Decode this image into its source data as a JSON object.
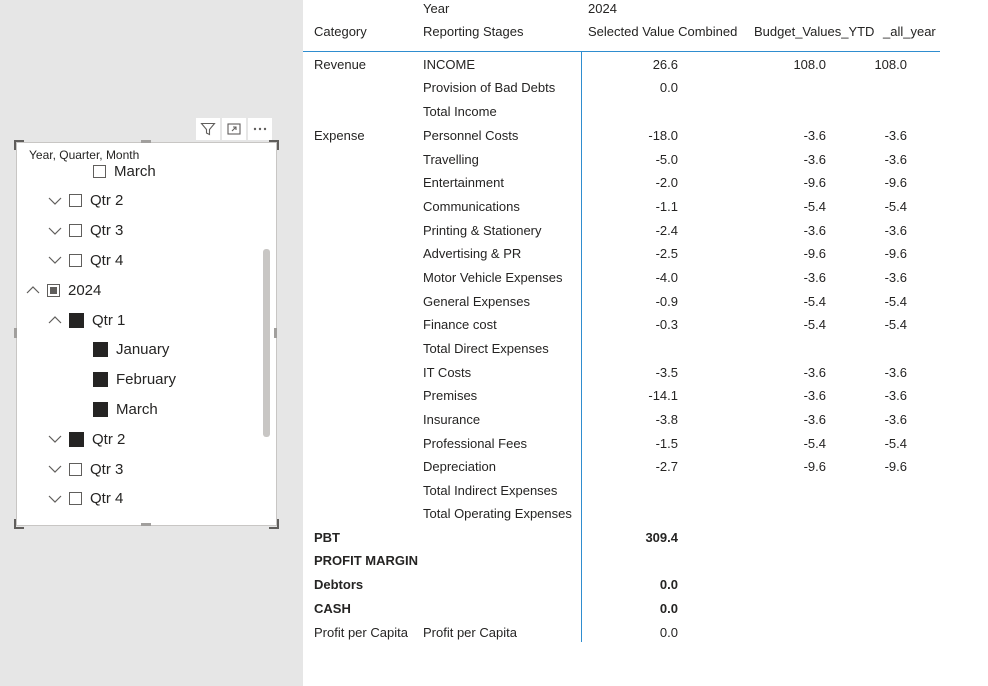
{
  "slicer": {
    "title": "Year, Quarter, Month",
    "items": [
      {
        "label": "March",
        "level": 2,
        "state": "empty",
        "chevron": "none"
      },
      {
        "label": "Qtr 2",
        "level": 1,
        "state": "empty",
        "chevron": "down"
      },
      {
        "label": "Qtr 3",
        "level": 1,
        "state": "empty",
        "chevron": "down"
      },
      {
        "label": "Qtr 4",
        "level": 1,
        "state": "empty",
        "chevron": "down"
      },
      {
        "label": "2024",
        "level": 0,
        "state": "partial",
        "chevron": "up"
      },
      {
        "label": "Qtr 1",
        "level": 1,
        "state": "filled",
        "chevron": "up"
      },
      {
        "label": "January",
        "level": 2,
        "state": "filled",
        "chevron": "none"
      },
      {
        "label": "February",
        "level": 2,
        "state": "filled",
        "chevron": "none"
      },
      {
        "label": "March",
        "level": 2,
        "state": "filled",
        "chevron": "none"
      },
      {
        "label": "Qtr 2",
        "level": 1,
        "state": "filled",
        "chevron": "down"
      },
      {
        "label": "Qtr 3",
        "level": 1,
        "state": "empty",
        "chevron": "down"
      },
      {
        "label": "Qtr 4",
        "level": 1,
        "state": "empty",
        "chevron": "down"
      }
    ],
    "toolbar_icons": [
      "filter-icon",
      "focus-mode-icon",
      "more-options-icon"
    ]
  },
  "table": {
    "header": {
      "year_label": "Year",
      "year_value": "2024",
      "col_category": "Category",
      "col_stage": "Reporting Stages",
      "col_selected": "Selected Value Combined",
      "col_budget": "Budget_Values_YTD",
      "col_allyear": "_all_year"
    },
    "rows": [
      {
        "category": "Revenue",
        "stage": "INCOME",
        "selected": "26.6",
        "budget": "108.0",
        "allyear": "108.0",
        "bold": false
      },
      {
        "category": "",
        "stage": "Provision of Bad Debts",
        "selected": "0.0",
        "budget": "",
        "allyear": "",
        "bold": false
      },
      {
        "category": "",
        "stage": "Total Income",
        "selected": "",
        "budget": "",
        "allyear": "",
        "bold": false
      },
      {
        "category": "Expense",
        "stage": "Personnel Costs",
        "selected": "-18.0",
        "budget": "-3.6",
        "allyear": "-3.6",
        "bold": false
      },
      {
        "category": "",
        "stage": "Travelling",
        "selected": "-5.0",
        "budget": "-3.6",
        "allyear": "-3.6",
        "bold": false
      },
      {
        "category": "",
        "stage": "Entertainment",
        "selected": "-2.0",
        "budget": "-9.6",
        "allyear": "-9.6",
        "bold": false
      },
      {
        "category": "",
        "stage": "Communications",
        "selected": "-1.1",
        "budget": "-5.4",
        "allyear": "-5.4",
        "bold": false
      },
      {
        "category": "",
        "stage": "Printing & Stationery",
        "selected": "-2.4",
        "budget": "-3.6",
        "allyear": "-3.6",
        "bold": false
      },
      {
        "category": "",
        "stage": "Advertising & PR",
        "selected": "-2.5",
        "budget": "-9.6",
        "allyear": "-9.6",
        "bold": false
      },
      {
        "category": "",
        "stage": "Motor Vehicle Expenses",
        "selected": "-4.0",
        "budget": "-3.6",
        "allyear": "-3.6",
        "bold": false
      },
      {
        "category": "",
        "stage": "General Expenses",
        "selected": "-0.9",
        "budget": "-5.4",
        "allyear": "-5.4",
        "bold": false
      },
      {
        "category": "",
        "stage": "Finance cost",
        "selected": "-0.3",
        "budget": "-5.4",
        "allyear": "-5.4",
        "bold": false
      },
      {
        "category": "",
        "stage": "Total Direct Expenses",
        "selected": "",
        "budget": "",
        "allyear": "",
        "bold": false
      },
      {
        "category": "",
        "stage": "IT Costs",
        "selected": "-3.5",
        "budget": "-3.6",
        "allyear": "-3.6",
        "bold": false
      },
      {
        "category": "",
        "stage": "Premises",
        "selected": "-14.1",
        "budget": "-3.6",
        "allyear": "-3.6",
        "bold": false
      },
      {
        "category": "",
        "stage": "Insurance",
        "selected": "-3.8",
        "budget": "-3.6",
        "allyear": "-3.6",
        "bold": false
      },
      {
        "category": "",
        "stage": "Professional Fees",
        "selected": "-1.5",
        "budget": "-5.4",
        "allyear": "-5.4",
        "bold": false
      },
      {
        "category": "",
        "stage": "Depreciation",
        "selected": "-2.7",
        "budget": "-9.6",
        "allyear": "-9.6",
        "bold": false
      },
      {
        "category": "",
        "stage": "Total Indirect Expenses",
        "selected": "",
        "budget": "",
        "allyear": "",
        "bold": false
      },
      {
        "category": "",
        "stage": "Total Operating Expenses",
        "selected": "",
        "budget": "",
        "allyear": "",
        "bold": false
      },
      {
        "category": "PBT",
        "stage": "",
        "selected": "309.4",
        "budget": "",
        "allyear": "",
        "bold": true
      },
      {
        "category": "PROFIT MARGIN",
        "stage": "",
        "selected": "",
        "budget": "",
        "allyear": "",
        "bold": true
      },
      {
        "category": "Debtors",
        "stage": "",
        "selected": "0.0",
        "budget": "",
        "allyear": "",
        "bold": true
      },
      {
        "category": "CASH",
        "stage": "",
        "selected": "0.0",
        "budget": "",
        "allyear": "",
        "bold": true
      },
      {
        "category": "Profit per Capita",
        "stage": "Profit per Capita",
        "selected": "0.0",
        "budget": "",
        "allyear": "",
        "bold": false
      }
    ]
  },
  "colors": {
    "accent_line": "#2f8dcf",
    "canvas_bg": "#e6e6e6",
    "checkbox_fill": "#252423"
  }
}
